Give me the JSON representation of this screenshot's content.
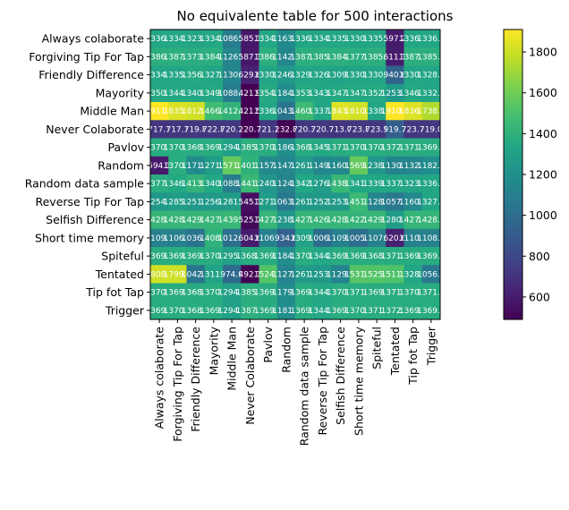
{
  "chart_data": {
    "type": "heatmap",
    "title": "No equivalente table for 500 interactions",
    "labels": [
      "Always colaborate",
      "Forgiving Tip For Tap",
      "Friendly Difference",
      "Mayority",
      "Middle Man",
      "Never Colaborate",
      "Pavlov",
      "Random",
      "Random data sample",
      "Reverse Tip For Tap",
      "Selfish Difference",
      "Short time memory",
      "Spiteful",
      "Tentated",
      "Tip fot Tap",
      "Trigger"
    ],
    "values": [
      [
        1336.1,
        1334.7,
        1323.7,
        1334.5,
        1086.5,
        585.1,
        1334.9,
        1163.1,
        1336.1,
        1334.7,
        1335.1,
        1330.1,
        1335.7,
        597.2,
        1336.1,
        1336.1
      ],
      [
        1386.1,
        1387.1,
        1373.9,
        1384.1,
        1126.1,
        587.1,
        1386.1,
        1142.1,
        1387.1,
        1385.1,
        1384.7,
        1377.1,
        1385.6,
        611.1,
        1387.1,
        1385.1
      ],
      [
        1334.1,
        1335.1,
        1356.1,
        1327.6,
        1130.6,
        629.6,
        1330.9,
        1246.6,
        1329.6,
        1326.2,
        1309.6,
        1330.6,
        1330.9,
        940.6,
        1330.6,
        1328.2
      ],
      [
        1350.1,
        1344.9,
        1340.1,
        1349.1,
        1088.4,
        421.9,
        1354.1,
        1184.1,
        1353.8,
        1343.1,
        1347.8,
        1347.1,
        1352.1,
        1253.2,
        1346.1,
        1332.1
      ],
      [
        1911.1,
        1835.9,
        1812.8,
        1466.4,
        1412.9,
        421.5,
        1336.1,
        1043.1,
        1460.1,
        1337.1,
        1843.9,
        1810.1,
        1338.1,
        1910.1,
        1836.1,
        1738.1
      ],
      [
        717.1,
        717.1,
        719.8,
        722.8,
        720.7,
        220.7,
        721.1,
        232.8,
        720.3,
        720.7,
        713.0,
        723.8,
        723.1,
        919.7,
        723.7,
        719.0
      ],
      [
        1370.1,
        1370.8,
        1368.1,
        1369.1,
        1294.8,
        1385.7,
        1370.1,
        1186.1,
        1368.1,
        1345.1,
        1371.8,
        1370.1,
        1370.1,
        1372.1,
        1371.1,
        1369.1
      ],
      [
        594.1,
        1370.8,
        1171.4,
        1271.3,
        1571.8,
        1401.6,
        1157.1,
        1147.1,
        1261.1,
        1149.1,
        1160.1,
        1569.1,
        1238.9,
        1130.1,
        1132.1,
        1182.1
      ],
      [
        1377.1,
        1346.8,
        1413.1,
        1340.1,
        1088.6,
        1441.1,
        1240.1,
        1124.5,
        1342.8,
        1276.1,
        1438.4,
        1341.1,
        1339.1,
        1337.1,
        1323.1,
        1336.1
      ],
      [
        1254.1,
        1285.7,
        1251.7,
        1256.1,
        1281.7,
        545.1,
        1271.1,
        1063.7,
        1261.7,
        1252.9,
        1253.7,
        1451.1,
        1128.1,
        1057.1,
        1160.1,
        1327.1
      ],
      [
        1428.1,
        1428.2,
        1429.7,
        1427.1,
        1439.1,
        525.1,
        1427.1,
        1238.1,
        1427.1,
        1426.1,
        1428.1,
        1422.1,
        1429.1,
        1280.1,
        1427.1,
        1428.1
      ],
      [
        1109.1,
        1106.1,
        1036.1,
        1408.1,
        1012.6,
        604.6,
        1106.7,
        934.6,
        1309.1,
        1006.1,
        1109.6,
        1005.6,
        1107.6,
        620.6,
        1110.6,
        1108.4
      ],
      [
        1369.1,
        1369.8,
        1369.1,
        1370.1,
        1295.8,
        1368.1,
        1369.1,
        1184.1,
        1370.1,
        1344.1,
        1369.6,
        1369.1,
        1368.1,
        1371.1,
        1369.1,
        1369.1
      ],
      [
        1808.1,
        1799.1,
        1042.8,
        1311.5,
        974.9,
        492.1,
        1524.9,
        1127.8,
        1261.5,
        1253.6,
        1129.5,
        1531.1,
        1525.1,
        1511.0,
        1328.1,
        1056.1
      ],
      [
        1370.1,
        1369.1,
        1368.1,
        1370.1,
        1294.8,
        1385.1,
        1369.1,
        1179.1,
        1369.1,
        1344.1,
        1370.8,
        1371.1,
        1369.1,
        1371.1,
        1370.1,
        1371.0
      ],
      [
        1369.1,
        1370.8,
        1368.1,
        1369.1,
        1294.8,
        1387.1,
        1369.1,
        1181.1,
        1369.1,
        1344.1,
        1369.8,
        1370.1,
        1371.1,
        1372.1,
        1369.1,
        1369.1
      ]
    ],
    "cell_text": [
      [
        "1336.1",
        "1334.7",
        "1323.7",
        "1334.5",
        "1086.5",
        "585.1",
        "1334.9",
        "1163.1",
        "1336.1",
        "1334.7",
        "1335.1",
        "1330.1",
        "1335.7",
        "597.2",
        "1336.1",
        "1336.1"
      ],
      [
        "1386.1",
        "1387.1",
        "1373.9",
        "1384.1",
        "1126.1",
        "587.1",
        "1386.1",
        "1142.1",
        "1387.1",
        "1385.1",
        "1384.7",
        "1377.1",
        "1385.6",
        "611.1",
        "1387.1",
        "1385.1"
      ],
      [
        "1334.1",
        "1335.1",
        "1356.1",
        "1327.6",
        "1130.6",
        "629.6",
        "1330.9",
        "1246.6",
        "1329.6",
        "1326.2",
        "1309.6",
        "1330.6",
        "1330.9",
        "940.6",
        "1330.6",
        "1328.2"
      ],
      [
        "1350.1",
        "1344.9",
        "1340.1",
        "1349.1",
        "1088.4",
        "421.9",
        "1354.1",
        "1184.1",
        "1353.8",
        "1343.1",
        "1347.8",
        "1347.1",
        "1352.1",
        "1253.2",
        "1346.1",
        "1332.1"
      ],
      [
        "1911.1",
        "1835.9",
        "1812.8",
        "1466.4",
        "1412.9",
        "421.5",
        "1336.1",
        "1043.1",
        "1460.1",
        "1337.1",
        "1843.9",
        "1810.1",
        "1338.1",
        "1910.1",
        "1836.1",
        "1738.1"
      ],
      [
        "717.1",
        "717.1",
        "719.8",
        "722.8",
        "720.7",
        "220.7",
        "721.1",
        "232.8",
        "720.3",
        "720.7",
        "713.0",
        "723.8",
        "723.1",
        "919.7",
        "723.7",
        "719.0"
      ],
      [
        "1370.1",
        "1370.8",
        "1368.1",
        "1369.1",
        "1294.8",
        "1385.7",
        "1370.1",
        "1186.1",
        "1368.1",
        "1345.1",
        "1371.8",
        "1370.1",
        "1370.1",
        "1372.1",
        "1371.1",
        "1369.1"
      ],
      [
        "594.1",
        "1370.8",
        "1171.4",
        "1271.3",
        "1571.8",
        "1401.6",
        "1157.1",
        "1147.1",
        "1261.1",
        "1149.1",
        "1160.1",
        "1569.1",
        "1238.9",
        "1130.1",
        "1132.1",
        "1182.1"
      ],
      [
        "1377.1",
        "1346.8",
        "1413.1",
        "1340.1",
        "1088.6",
        "1441.1",
        "1240.1",
        "1124.5",
        "1342.8",
        "1276.1",
        "1438.4",
        "1341.1",
        "1339.1",
        "1337.1",
        "1323.1",
        "1336.1"
      ],
      [
        "1254.1",
        "1285.7",
        "1251.7",
        "1256.1",
        "1281.7",
        "545.1",
        "1271.1",
        "1063.7",
        "1261.7",
        "1252.9",
        "1253.7",
        "1451.1",
        "1128.1",
        "1057.1",
        "1160.1",
        "1327.1"
      ],
      [
        "1428.1",
        "1428.2",
        "1429.7",
        "1427.1",
        "1439.1",
        "525.1",
        "1427.1",
        "1238.1",
        "1427.1",
        "1426.1",
        "1428.1",
        "1422.1",
        "1429.1",
        "1280.1",
        "1427.1",
        "1428.1"
      ],
      [
        "1109.1",
        "1106.1",
        "1036.1",
        "1408.1",
        "1012.6",
        "604.6",
        "1106.7",
        "934.6",
        "1309.1",
        "1006.1",
        "1109.6",
        "1005.6",
        "1107.6",
        "620.6",
        "1110.6",
        "1108.4"
      ],
      [
        "1369.1",
        "1369.8",
        "1369.1",
        "1370.1",
        "1295.8",
        "1368.1",
        "1369.1",
        "1184.1",
        "1370.1",
        "1344.1",
        "1369.6",
        "1369.1",
        "1368.1",
        "1371.1",
        "1369.1",
        "1369.1"
      ],
      [
        "1808.1",
        "1799.1",
        "1042.8",
        "1311.5",
        "974.9",
        "492.1",
        "1524.9",
        "1127.8",
        "1261.5",
        "1253.6",
        "1129.5",
        "1531.1",
        "1525.1",
        "1511.0",
        "1328.1",
        "1056.1"
      ],
      [
        "1370.1",
        "1369.1",
        "1368.1",
        "1370.1",
        "1294.8",
        "1385.1",
        "1369.1",
        "1179.1",
        "1369.1",
        "1344.1",
        "1370.8",
        "1371.1",
        "1369.1",
        "1371.1",
        "1370.1",
        "1371.0"
      ],
      [
        "1369.1",
        "1370.8",
        "1368.1",
        "1369.1",
        "1294.8",
        "1387.1",
        "1369.1",
        "1181.1",
        "1369.1",
        "1344.1",
        "1369.8",
        "1370.1",
        "1371.1",
        "1372.1",
        "1369.1",
        "1369.1"
      ]
    ],
    "colormap": "viridis",
    "colorbar": {
      "range": [
        490,
        1910
      ],
      "ticks": [
        600,
        800,
        1000,
        1200,
        1400,
        1600,
        1800
      ]
    },
    "grid": false
  }
}
